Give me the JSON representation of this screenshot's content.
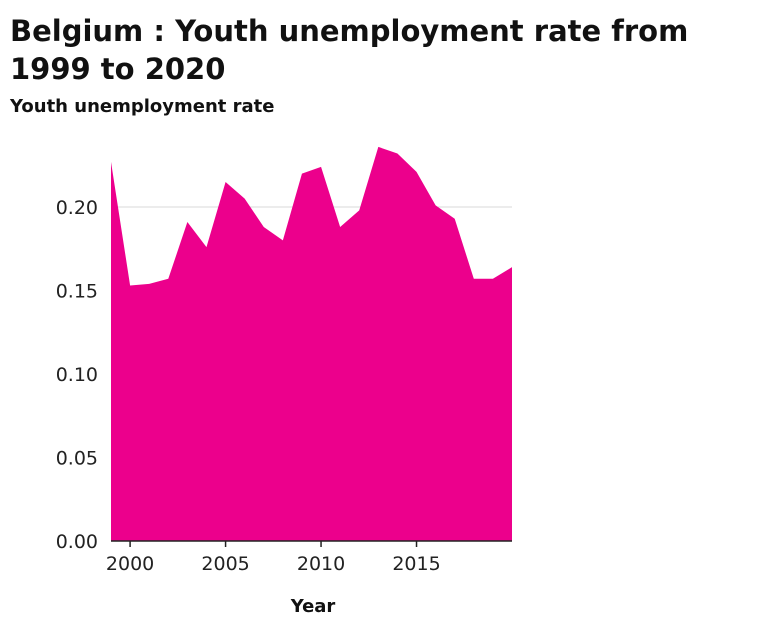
{
  "chart_data": {
    "type": "area",
    "title": "Belgium : Youth unemployment rate from 1999 to 2020",
    "ylabel": "Youth unemployment rate",
    "xlabel": "Year",
    "xlim": [
      1999,
      2020
    ],
    "ylim": [
      0,
      0.24
    ],
    "xticks": [
      2000,
      2005,
      2010,
      2015
    ],
    "xtick_labels": [
      "2000",
      "2005",
      "2010",
      "2015"
    ],
    "yticks": [
      0,
      0.05,
      0.1,
      0.15,
      0.2
    ],
    "ytick_labels": [
      "0.00",
      "0.05",
      "0.10",
      "0.15",
      "0.20"
    ],
    "grid": "horizontal",
    "legend": "none",
    "color": "#EC008C",
    "series": [
      {
        "x": [
          1999,
          2000,
          2001,
          2002,
          2003,
          2004,
          2005,
          2006,
          2007,
          2008,
          2009,
          2010,
          2011,
          2012,
          2013,
          2014,
          2015,
          2016,
          2017,
          2018,
          2019,
          2020
        ],
        "values": [
          0.227,
          0.153,
          0.154,
          0.157,
          0.191,
          0.176,
          0.215,
          0.205,
          0.188,
          0.18,
          0.22,
          0.224,
          0.188,
          0.198,
          0.236,
          0.232,
          0.221,
          0.201,
          0.193,
          0.157,
          0.157,
          0.164
        ]
      }
    ]
  }
}
